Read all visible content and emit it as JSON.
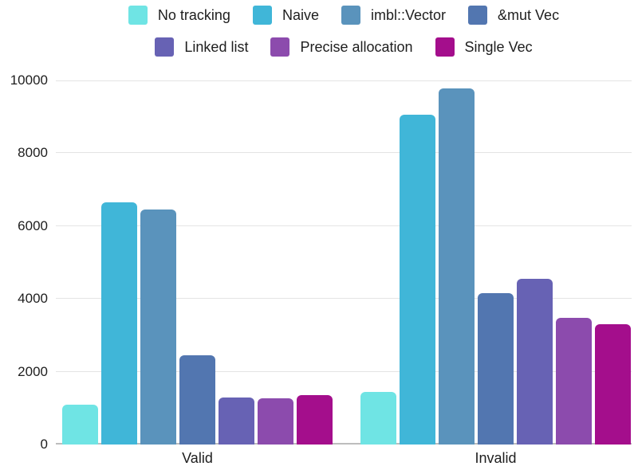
{
  "chart_data": {
    "type": "bar",
    "title": "",
    "categories": [
      "Valid",
      "Invalid"
    ],
    "series": [
      {
        "name": "No tracking",
        "color": "#6FE4E4",
        "values": [
          1100,
          1450
        ]
      },
      {
        "name": "Naive",
        "color": "#40B6D8",
        "values": [
          6650,
          9050
        ]
      },
      {
        "name": "imbl::Vector",
        "color": "#5A93BC",
        "values": [
          6450,
          9775
        ]
      },
      {
        "name": "&mut Vec",
        "color": "#5276B0",
        "values": [
          2450,
          4150
        ]
      },
      {
        "name": "Linked list",
        "color": "#6762B4",
        "values": [
          1300,
          4550
        ]
      },
      {
        "name": "Precise allocation",
        "color": "#8C4BAD",
        "values": [
          1280,
          3475
        ]
      },
      {
        "name": "Single Vec",
        "color": "#A40E8C",
        "values": [
          1350,
          3300
        ]
      }
    ],
    "y_ticks": [
      0,
      2000,
      4000,
      6000,
      8000,
      10000
    ],
    "ylim": [
      0,
      10000
    ],
    "xlabel": "",
    "ylabel": "",
    "grid": true,
    "legend_position": "top"
  },
  "colors": {
    "background": "#FFFFFF",
    "grid_line": "#E4E4E4",
    "zero_line": "#BDBDBD",
    "text": "#1E1E1E"
  }
}
